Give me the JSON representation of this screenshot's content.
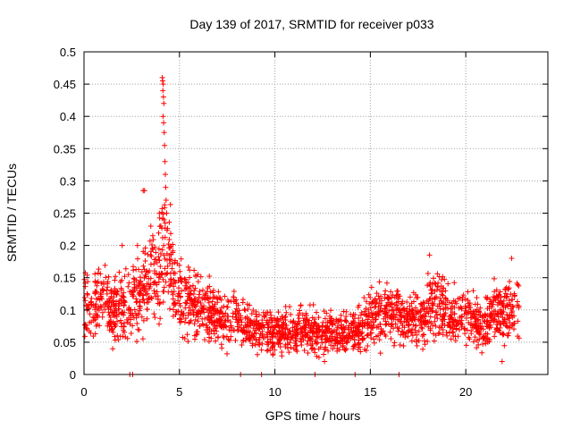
{
  "chart_data": {
    "type": "scatter",
    "title": "Day 139 of 2017, SRMTID for receiver p033",
    "xlabel": "GPS time / hours",
    "ylabel": "SRMTID / TECUs",
    "xlim": [
      0,
      24.3
    ],
    "ylim": [
      0,
      0.5
    ],
    "xticks": [
      0,
      5,
      10,
      15,
      20
    ],
    "xtick_labels": [
      "0",
      "5",
      "10",
      "15",
      "20"
    ],
    "yticks": [
      0,
      0.05,
      0.1,
      0.15,
      0.2,
      0.25,
      0.3,
      0.35,
      0.4,
      0.45,
      0.5
    ],
    "ytick_labels": [
      "0",
      "0.05",
      "0.1",
      "0.15",
      "0.2",
      "0.25",
      "0.3",
      "0.35",
      "0.4",
      "0.45",
      "0.5"
    ],
    "grid": true,
    "marker": "+",
    "marker_color": "#ff0000",
    "envelope": {
      "description": "approximate central level and spread of the dense point cloud, in data units",
      "times_hours": [
        0,
        0.5,
        1,
        1.5,
        2,
        2.5,
        3,
        3.5,
        4,
        4.3,
        4.6,
        5,
        5.5,
        6,
        6.5,
        7,
        7.5,
        8,
        8.5,
        9,
        9.5,
        10,
        10.5,
        11,
        11.5,
        12,
        12.5,
        13,
        13.5,
        14,
        14.5,
        15,
        15.5,
        16,
        16.5,
        17,
        17.5,
        18,
        18.5,
        19,
        19.5,
        20,
        20.5,
        21,
        21.5,
        22,
        22.5,
        22.8
      ],
      "center": [
        0.1,
        0.11,
        0.12,
        0.1,
        0.105,
        0.11,
        0.12,
        0.15,
        0.17,
        0.2,
        0.16,
        0.12,
        0.11,
        0.1,
        0.095,
        0.09,
        0.085,
        0.08,
        0.075,
        0.07,
        0.068,
        0.065,
        0.065,
        0.068,
        0.07,
        0.068,
        0.065,
        0.063,
        0.062,
        0.065,
        0.07,
        0.09,
        0.1,
        0.095,
        0.09,
        0.085,
        0.085,
        0.1,
        0.11,
        0.09,
        0.085,
        0.09,
        0.085,
        0.07,
        0.1,
        0.09,
        0.1,
        0.11
      ],
      "spread": [
        0.035,
        0.035,
        0.04,
        0.035,
        0.035,
        0.04,
        0.045,
        0.05,
        0.06,
        0.07,
        0.05,
        0.04,
        0.035,
        0.035,
        0.03,
        0.03,
        0.03,
        0.028,
        0.025,
        0.025,
        0.022,
        0.022,
        0.022,
        0.022,
        0.022,
        0.022,
        0.022,
        0.022,
        0.022,
        0.022,
        0.025,
        0.03,
        0.035,
        0.03,
        0.03,
        0.028,
        0.028,
        0.035,
        0.04,
        0.03,
        0.028,
        0.03,
        0.028,
        0.025,
        0.035,
        0.03,
        0.035,
        0.035
      ]
    },
    "notable_points": [
      {
        "x": 4.1,
        "y": 0.46
      },
      {
        "x": 4.12,
        "y": 0.455
      },
      {
        "x": 4.15,
        "y": 0.45
      },
      {
        "x": 4.13,
        "y": 0.44
      },
      {
        "x": 4.16,
        "y": 0.43
      },
      {
        "x": 4.18,
        "y": 0.42
      },
      {
        "x": 4.14,
        "y": 0.4
      },
      {
        "x": 4.17,
        "y": 0.39
      },
      {
        "x": 4.2,
        "y": 0.375
      },
      {
        "x": 4.22,
        "y": 0.355
      },
      {
        "x": 4.24,
        "y": 0.33
      },
      {
        "x": 4.26,
        "y": 0.31
      },
      {
        "x": 4.28,
        "y": 0.29
      },
      {
        "x": 4.3,
        "y": 0.27
      },
      {
        "x": 4.33,
        "y": 0.25
      },
      {
        "x": 3.1,
        "y": 0.285
      },
      {
        "x": 3.17,
        "y": 0.285
      },
      {
        "x": 3.5,
        "y": 0.23
      },
      {
        "x": 3.6,
        "y": 0.215
      },
      {
        "x": 2.8,
        "y": 0.2
      },
      {
        "x": 2.0,
        "y": 0.2
      },
      {
        "x": 18.1,
        "y": 0.185
      },
      {
        "x": 22.4,
        "y": 0.18
      },
      {
        "x": 21.9,
        "y": 0.02
      },
      {
        "x": 12.6,
        "y": 0.02
      },
      {
        "x": 8.2,
        "y": 0
      },
      {
        "x": 9.3,
        "y": 0
      },
      {
        "x": 14.2,
        "y": 0
      },
      {
        "x": 2.4,
        "y": 0
      },
      {
        "x": 2.55,
        "y": 0
      },
      {
        "x": 12.1,
        "y": 0
      },
      {
        "x": 16.5,
        "y": 0
      }
    ]
  }
}
